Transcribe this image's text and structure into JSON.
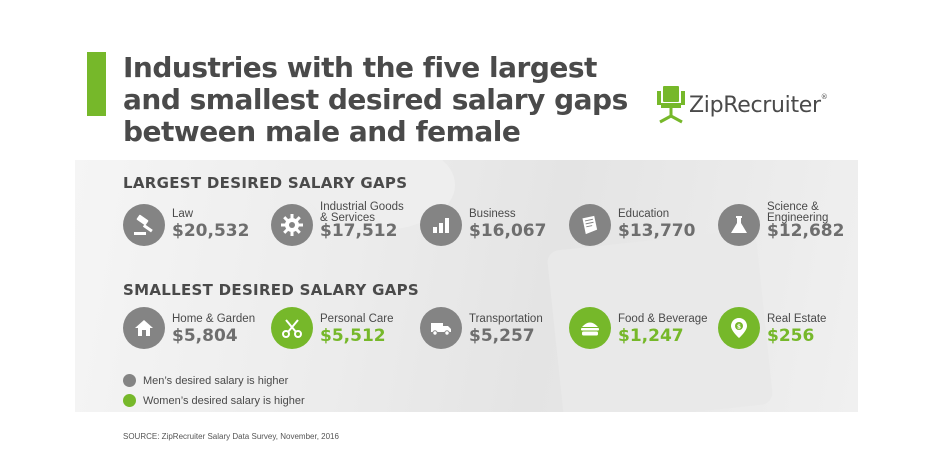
{
  "title": "Industries with the five largest and smallest desired salary gaps between male and female",
  "logo": {
    "text": "ZipRecruiter",
    "registered": "®"
  },
  "colors": {
    "accent": "#76b82a",
    "gray": "#848484",
    "text": "#4a4a4a"
  },
  "largest": {
    "heading": "LARGEST DESIRED SALARY GAPS",
    "items": [
      {
        "label": "Law",
        "value": "$20,532",
        "color": "gray",
        "icon": "gavel-icon"
      },
      {
        "label": "Industrial Goods\n& Services",
        "value": "$17,512",
        "color": "gray",
        "icon": "gear-icon"
      },
      {
        "label": "Business",
        "value": "$16,067",
        "color": "gray",
        "icon": "bar-chart-icon"
      },
      {
        "label": "Education",
        "value": "$13,770",
        "color": "gray",
        "icon": "book-icon"
      },
      {
        "label": "Science &\nEngineering",
        "value": "$12,682",
        "color": "gray",
        "icon": "flask-icon"
      }
    ]
  },
  "smallest": {
    "heading": "SMALLEST DESIRED SALARY GAPS",
    "items": [
      {
        "label": "Home & Garden",
        "value": "$5,804",
        "color": "gray",
        "icon": "house-icon"
      },
      {
        "label": "Personal Care",
        "value": "$5,512",
        "color": "green",
        "icon": "scissors-icon"
      },
      {
        "label": "Transportation",
        "value": "$5,257",
        "color": "gray",
        "icon": "truck-icon"
      },
      {
        "label": "Food & Beverage",
        "value": "$1,247",
        "color": "green",
        "icon": "burger-icon"
      },
      {
        "label": "Real Estate",
        "value": "$256",
        "color": "green",
        "icon": "location-pin-icon"
      }
    ]
  },
  "legend": {
    "men": "Men’s desired salary is higher",
    "women": "Women’s desired salary is higher"
  },
  "source": "SOURCE: ZipRecruiter Salary Data Survey, November, 2016"
}
